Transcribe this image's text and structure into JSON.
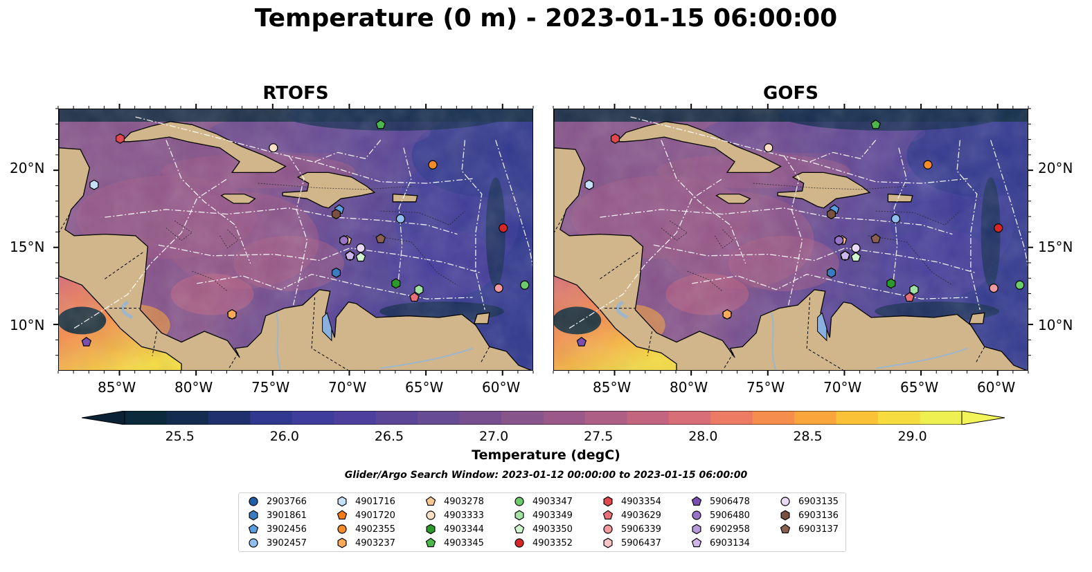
{
  "title": "Temperature (0 m) - 2023-01-15 06:00:00",
  "panels": [
    {
      "id": "rtofs",
      "title": "RTOFS"
    },
    {
      "id": "gofs",
      "title": "GOFS"
    }
  ],
  "map_extent": {
    "lon_min": -89.0,
    "lon_max": -58.0,
    "lat_min": 7.0,
    "lat_max": 24.0
  },
  "lon_ticks": [
    {
      "lon": -85,
      "label": "85°W"
    },
    {
      "lon": -80,
      "label": "80°W"
    },
    {
      "lon": -75,
      "label": "75°W"
    },
    {
      "lon": -70,
      "label": "70°W"
    },
    {
      "lon": -65,
      "label": "65°W"
    },
    {
      "lon": -60,
      "label": "60°W"
    }
  ],
  "lat_ticks": [
    {
      "lat": 20,
      "label": "20°N"
    },
    {
      "lat": 15,
      "label": "15°N"
    },
    {
      "lat": 10,
      "label": "10°N"
    }
  ],
  "colorbar": {
    "label": "Temperature (degC)",
    "min": 25.25,
    "max": 29.25,
    "step": 0.25,
    "ticks": [
      "25.5",
      "26.0",
      "26.5",
      "27.0",
      "27.5",
      "28.0",
      "28.5",
      "29.0"
    ],
    "colors": [
      "#0b2a3c",
      "#132c50",
      "#20306e",
      "#31388f",
      "#3f3d9c",
      "#4d3f9e",
      "#5a4597",
      "#684c93",
      "#774f8f",
      "#87548b",
      "#9a5989",
      "#ae5f85",
      "#c36480",
      "#d86e76",
      "#eb7b63",
      "#f58e4c",
      "#faa53b",
      "#fac236",
      "#f6dc3f",
      "#eef052"
    ],
    "under_color": "#0a2233",
    "over_color": "#f3f45a"
  },
  "search_window": "Glider/Argo Search Window: 2023-01-12 00:00:00 to 2023-01-15 06:00:00",
  "colors": {
    "land": "#d2b68b",
    "river": "#9db6cc",
    "lake": "#8ab0e0",
    "coast": "#000000"
  },
  "platforms": [
    {
      "id": "2903766",
      "marker": "circle",
      "color": "#1f5fa8",
      "lon": -70.9,
      "lat": 13.4
    },
    {
      "id": "3901861",
      "marker": "hexagon",
      "color": "#3b7cc0",
      "lon": -70.9,
      "lat": 13.4
    },
    {
      "id": "3902456",
      "marker": "pentagon",
      "color": "#5a9ee0",
      "lon": -70.7,
      "lat": 17.5
    },
    {
      "id": "3902457",
      "marker": "circle",
      "color": "#8fbfee",
      "lon": -66.7,
      "lat": 16.9
    },
    {
      "id": "4901716",
      "marker": "hexagon",
      "color": "#c6e0f7",
      "lon": -86.7,
      "lat": 19.1
    },
    {
      "id": "4901720",
      "marker": "pentagon",
      "color": "#f27a12",
      "lon": -77.7,
      "lat": 10.7
    },
    {
      "id": "4902355",
      "marker": "circle",
      "color": "#f58c28",
      "lon": -64.6,
      "lat": 20.4
    },
    {
      "id": "4903237",
      "marker": "hexagon",
      "color": "#fbab58",
      "lon": -77.7,
      "lat": 10.7
    },
    {
      "id": "4903278",
      "marker": "pentagon",
      "color": "#f8c890",
      "lon": -70.2,
      "lat": 15.5
    },
    {
      "id": "4903333",
      "marker": "circle",
      "color": "#fde0c6",
      "lon": -75.0,
      "lat": 21.5
    },
    {
      "id": "4903344",
      "marker": "hexagon",
      "color": "#2a9a2a",
      "lon": -67.0,
      "lat": 12.7
    },
    {
      "id": "4903345",
      "marker": "pentagon",
      "color": "#4cb84c",
      "lon": -68.0,
      "lat": 23.0
    },
    {
      "id": "4903347",
      "marker": "circle",
      "color": "#6ccc6c",
      "lon": -58.6,
      "lat": 12.6
    },
    {
      "id": "4903349",
      "marker": "hexagon",
      "color": "#a2e2a2",
      "lon": -65.5,
      "lat": 12.3
    },
    {
      "id": "4903350",
      "marker": "pentagon",
      "color": "#cff5cf",
      "lon": -69.3,
      "lat": 14.4
    },
    {
      "id": "4903352",
      "marker": "circle",
      "color": "#d62728",
      "lon": -60.0,
      "lat": 16.3
    },
    {
      "id": "4903354",
      "marker": "hexagon",
      "color": "#e0474f",
      "lon": -85.0,
      "lat": 22.1
    },
    {
      "id": "4903629",
      "marker": "pentagon",
      "color": "#e8707a",
      "lon": -65.8,
      "lat": 11.8
    },
    {
      "id": "5906339",
      "marker": "circle",
      "color": "#f29a9e",
      "lon": -60.3,
      "lat": 12.4
    },
    {
      "id": "5906437",
      "marker": "hexagon",
      "color": "#f8c4c6",
      "lon": -70.4,
      "lat": 15.5
    },
    {
      "id": "5906478",
      "marker": "pentagon",
      "color": "#7a4fb0",
      "lon": -87.2,
      "lat": 8.9
    },
    {
      "id": "5906480",
      "marker": "circle",
      "color": "#9a74c8",
      "lon": -70.4,
      "lat": 15.5
    },
    {
      "id": "6902958",
      "marker": "hexagon",
      "color": "#b89adc",
      "lon": -70.0,
      "lat": 14.5
    },
    {
      "id": "6903134",
      "marker": "pentagon",
      "color": "#cdb6ea",
      "lon": -70.0,
      "lat": 14.5
    },
    {
      "id": "6903135",
      "marker": "circle",
      "color": "#ead9f7",
      "lon": -69.3,
      "lat": 15.0
    },
    {
      "id": "6903136",
      "marker": "hexagon",
      "color": "#7a5040",
      "lon": -70.9,
      "lat": 17.2
    },
    {
      "id": "6903137",
      "marker": "pentagon",
      "color": "#8c6050",
      "lon": -68.0,
      "lat": 15.6
    }
  ]
}
